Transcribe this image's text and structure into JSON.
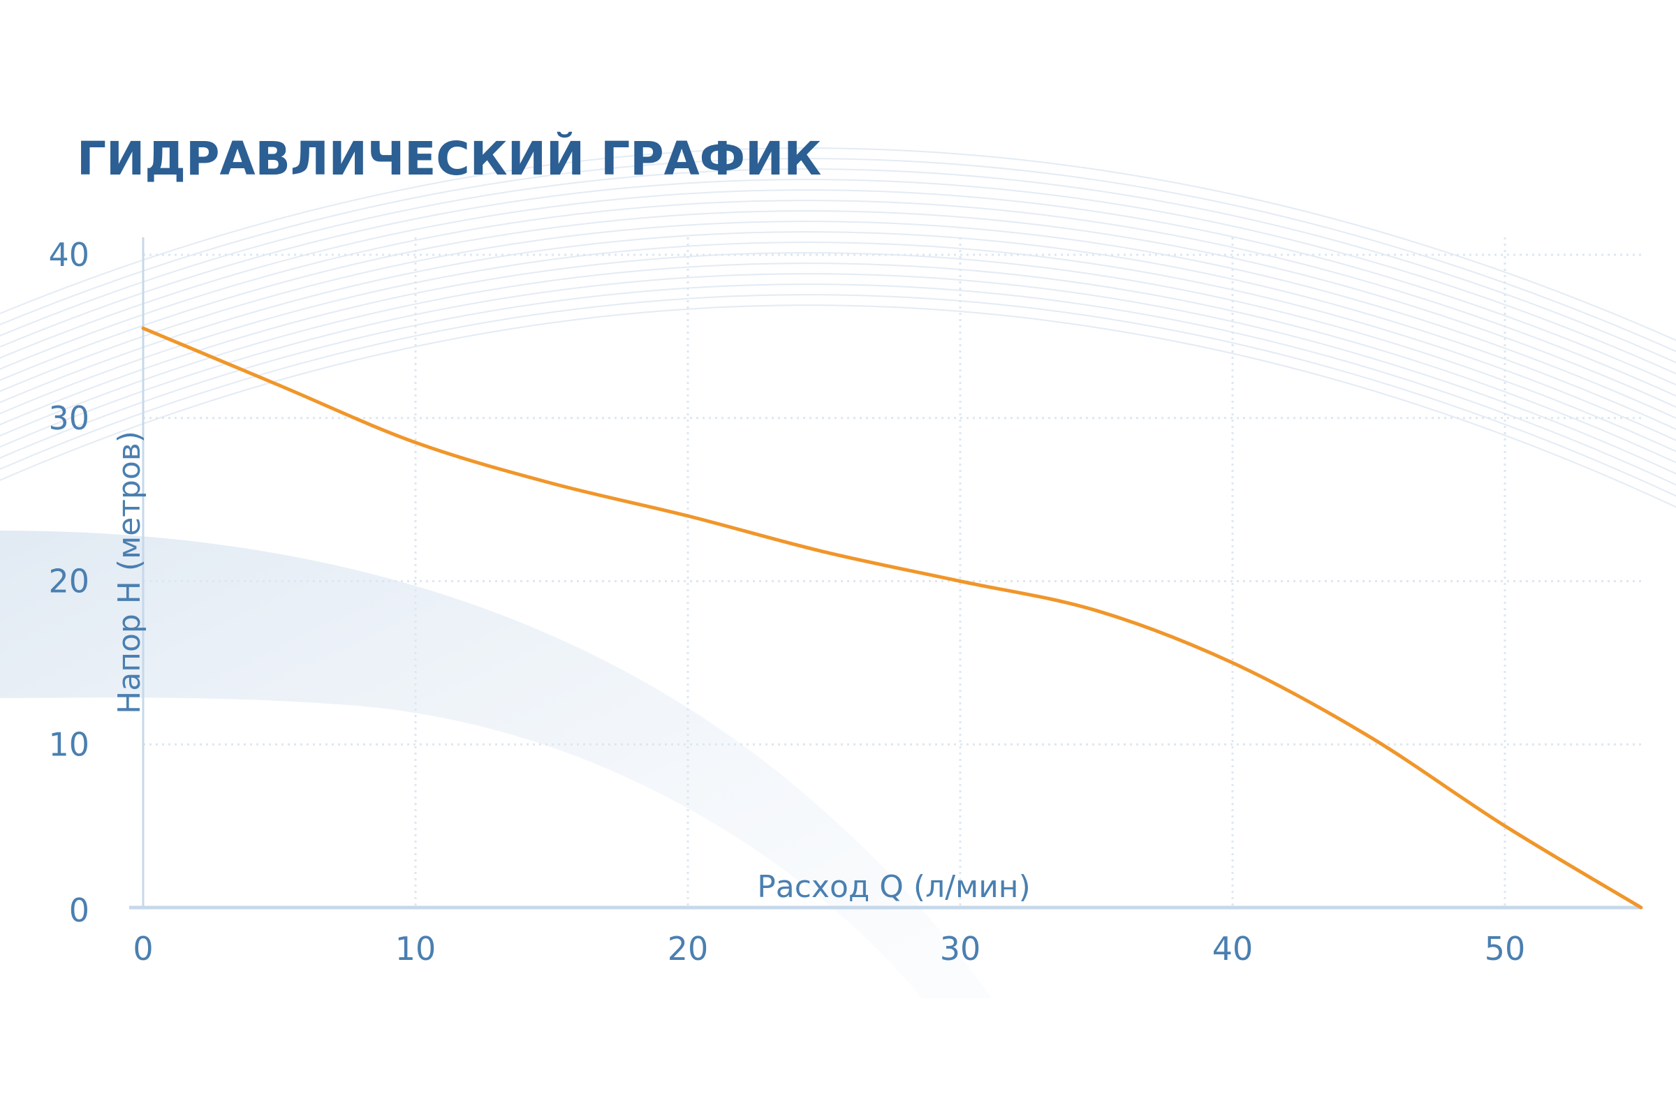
{
  "chart_data": {
    "type": "line",
    "title": "ГИДРАВЛИЧЕСКИЙ ГРАФИК",
    "xlabel": "Расход Q (л/мин)",
    "ylabel": "Напор H (метров)",
    "xlim": [
      0,
      55
    ],
    "ylim": [
      0,
      40
    ],
    "xticks": [
      "0",
      "10",
      "20",
      "30",
      "40",
      "50"
    ],
    "yticks": [
      "0",
      "10",
      "20",
      "30",
      "40"
    ],
    "grid": true,
    "series": [
      {
        "color": "#f0962a",
        "x": [
          0,
          5,
          10,
          15,
          20,
          25,
          30,
          35,
          40,
          45,
          50,
          55
        ],
        "y": [
          35.5,
          32,
          28.5,
          26,
          24,
          21.8,
          20,
          18.2,
          15,
          10.5,
          5,
          0
        ]
      }
    ]
  },
  "colors": {
    "title": "#2c5f93",
    "ticks": "#4a7fb0",
    "axis": "#c6d8ea",
    "grid": "#dde7f1",
    "line": "#f0962a"
  }
}
